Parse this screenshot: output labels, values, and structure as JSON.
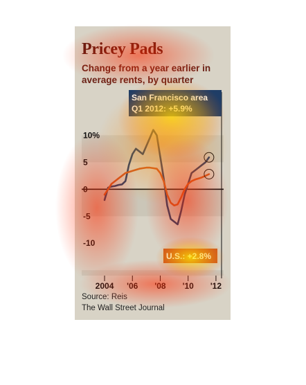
{
  "card": {
    "title": "Pricey Pads",
    "subtitle": "Change from a year earlier in average rents, by quarter",
    "source": "Source: Reis",
    "publisher": "The Wall Street Journal"
  },
  "colors": {
    "san_francisco": "#1f3d66",
    "us": "#cc5a20",
    "background": "#d8d3c6",
    "band": "#cbc6b8",
    "title": "#5c1a12"
  },
  "chart_data": {
    "type": "line",
    "x_start": 2004,
    "x_step": 0.25,
    "xlim": [
      2003.75,
      2012.55
    ],
    "ylim": [
      -16,
      18
    ],
    "yticks": [
      10,
      5,
      0,
      -5,
      -10
    ],
    "ytick_labels": [
      "10%",
      "5",
      "0",
      "-5",
      "-10"
    ],
    "xticks": [
      2004,
      2006,
      2008,
      2010,
      2012
    ],
    "xtick_labels": [
      "2004",
      "'06",
      "'08",
      "'10",
      "'12"
    ],
    "series": [
      {
        "name": "San Francisco area",
        "values": [
          -2.0,
          0.3,
          0.5,
          0.6,
          0.8,
          0.9,
          1.5,
          4.5,
          6.5,
          7.5,
          7.0,
          6.5,
          8.0,
          9.5,
          11.0,
          10.0,
          6.0,
          2.0,
          -3.0,
          -5.5,
          -6.0,
          -6.5,
          -4.0,
          -1.0,
          1.0,
          3.0,
          3.5,
          4.0,
          4.5,
          5.0,
          5.9
        ]
      },
      {
        "name": "U.S.",
        "values": [
          -1.0,
          0.0,
          1.0,
          1.5,
          2.0,
          2.5,
          3.0,
          3.2,
          3.4,
          3.6,
          3.8,
          3.9,
          4.0,
          4.0,
          3.9,
          3.8,
          3.0,
          1.5,
          -1.0,
          -2.5,
          -3.0,
          -2.8,
          -1.5,
          0.0,
          1.0,
          1.5,
          1.8,
          2.0,
          2.2,
          2.5,
          2.8
        ]
      }
    ],
    "annotations": [
      {
        "label": "San Francisco area",
        "value_label": "Q1 2012: +5.9%",
        "series": "San Francisco area"
      },
      {
        "label": "U.S.: +2.8%",
        "series": "U.S."
      }
    ]
  }
}
